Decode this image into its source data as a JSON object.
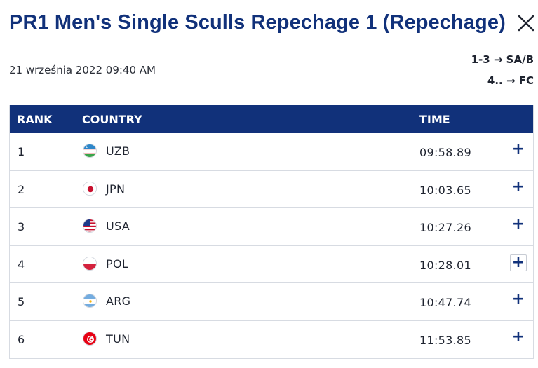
{
  "header": {
    "title": "PR1 Men's Single Sculls Repechage 1 (Repechage)",
    "date": "21 września 2022 09:40 AM",
    "qualification": [
      "1-3 → SA/B",
      "4.. → FC"
    ]
  },
  "table": {
    "columns": {
      "rank": "RANK",
      "country": "COUNTRY",
      "time": "TIME"
    },
    "rows": [
      {
        "rank": "1",
        "country": "UZB",
        "time": "09:58.89",
        "flag": "uzbekistan-flag-icon"
      },
      {
        "rank": "2",
        "country": "JPN",
        "time": "10:03.65",
        "flag": "japan-flag-icon"
      },
      {
        "rank": "3",
        "country": "USA",
        "time": "10:27.26",
        "flag": "usa-flag-icon"
      },
      {
        "rank": "4",
        "country": "POL",
        "time": "10:28.01",
        "flag": "poland-flag-icon"
      },
      {
        "rank": "5",
        "country": "ARG",
        "time": "10:47.74",
        "flag": "argentina-flag-icon"
      },
      {
        "rank": "6",
        "country": "TUN",
        "time": "11:53.85",
        "flag": "tunisia-flag-icon"
      }
    ],
    "expand_symbol": "+"
  },
  "colors": {
    "accent": "#11317a",
    "row_border": "#d7dbe2",
    "text": "#1f2430"
  }
}
